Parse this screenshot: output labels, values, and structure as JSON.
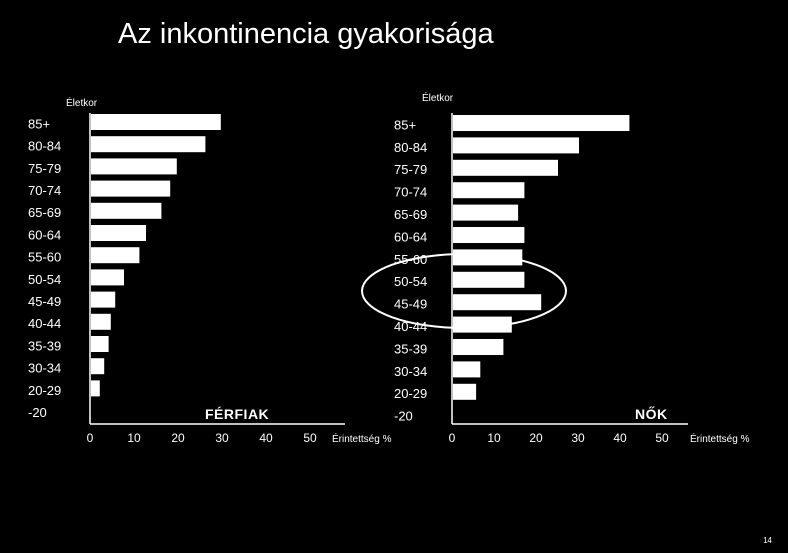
{
  "slide": {
    "title": "Az inkontinencia gyakorisága",
    "page_number": "14"
  },
  "chart_data": [
    {
      "type": "bar",
      "orientation": "horizontal",
      "panel_label": "FÉRFIAK",
      "ylabel": "Életkor",
      "xlabel": "Érintettség %",
      "categories": [
        "85+",
        "80-84",
        "75-79",
        "70-74",
        "65-69",
        "60-64",
        "55-60",
        "50-54",
        "45-49",
        "40-44",
        "35-39",
        "30-34",
        "20-29",
        "-20"
      ],
      "values": [
        29.5,
        26,
        19.5,
        18,
        16,
        12.5,
        11,
        7.5,
        5.5,
        4.5,
        4,
        3,
        2,
        0
      ],
      "xticks": [
        0,
        10,
        20,
        30,
        40,
        50
      ],
      "xlim": [
        0,
        50
      ],
      "grid": false
    },
    {
      "type": "bar",
      "orientation": "horizontal",
      "panel_label": "NŐK",
      "ylabel": "Életkor",
      "xlabel": "Érintettség %",
      "categories": [
        "85+",
        "80-84",
        "75-79",
        "70-74",
        "65-69",
        "60-64",
        "55-60",
        "50-54",
        "45-49",
        "40-44",
        "35-39",
        "30-34",
        "20-29",
        "-20"
      ],
      "values": [
        42,
        30,
        25,
        17,
        15.5,
        17,
        16.5,
        17,
        21,
        14,
        12,
        6.5,
        5.5,
        0
      ],
      "xticks": [
        0,
        10,
        20,
        30,
        40,
        50
      ],
      "xlim": [
        0,
        50
      ],
      "grid": false,
      "highlight": [
        "50-54",
        "45-49"
      ]
    }
  ]
}
